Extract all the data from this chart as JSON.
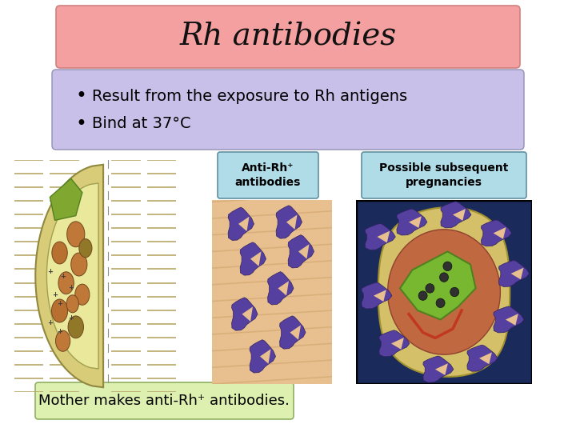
{
  "title": "Rh antibodies",
  "title_fontsize": 28,
  "title_bg_top": "#F4A0A0",
  "title_bg_bot": "#F8C8C8",
  "title_text_color": "#111111",
  "bullet_box_color": "#C8C0E8",
  "bullet_box_edge": "#9090b0",
  "bullets": [
    "Result from the exposure to Rh antigens",
    "Bind at 37°C"
  ],
  "bullet_fontsize": 14,
  "label1_text": "Anti-Rh⁺\nantibodies",
  "label2_text": "Possible subsequent\npregnancies",
  "label_bg": "#b0dce8",
  "label_edge": "#6090a0",
  "caption_text": "Mother makes anti-Rh⁺ antibodies.",
  "caption_bg": "#ddf0b0",
  "caption_edge": "#90b060",
  "bg_color": "#ffffff"
}
